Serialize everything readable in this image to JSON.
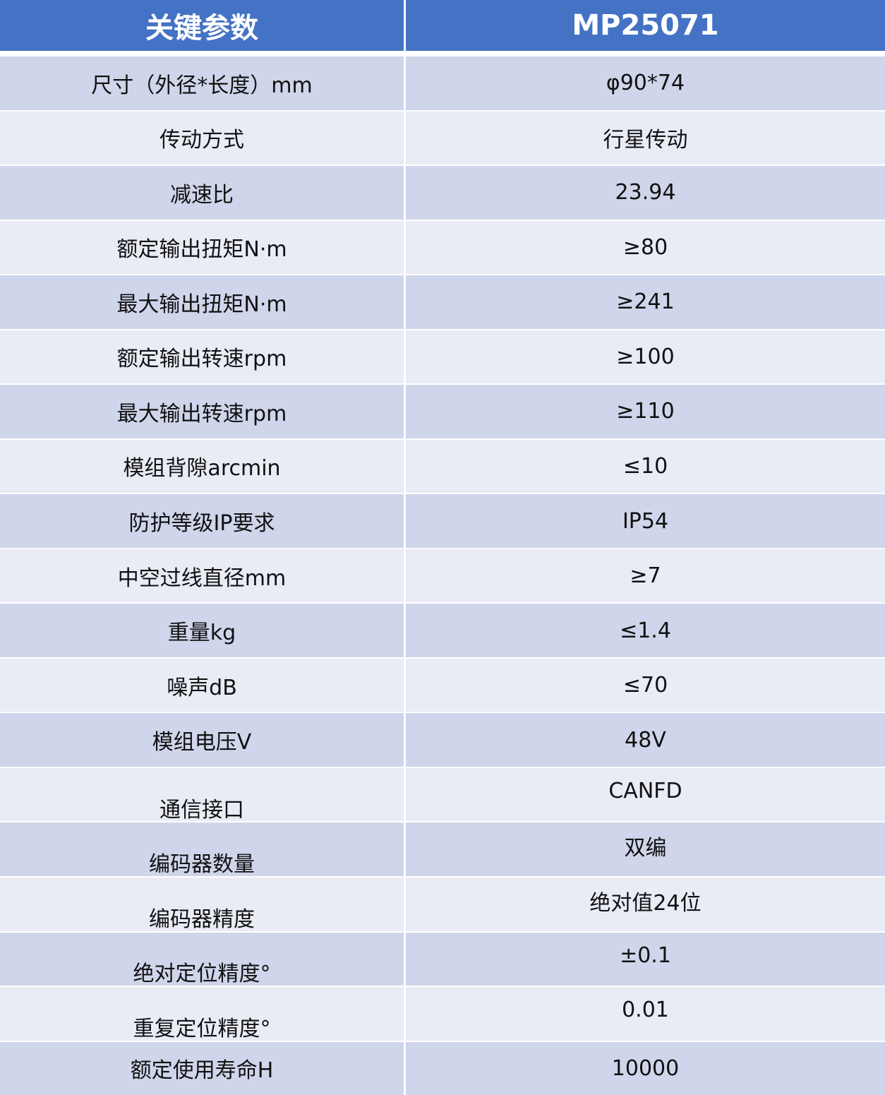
{
  "header": {
    "param": "关键参数",
    "model": "MP25071"
  },
  "colors": {
    "header": "#4472C4",
    "row_odd": "#CFD5EA",
    "row_even": "#E9EBF5"
  },
  "rows": [
    {
      "label": "尺寸（外径*长度）mm",
      "value": "φ90*74"
    },
    {
      "label": "传动方式",
      "value": "行星传动"
    },
    {
      "label": "减速比",
      "value": "23.94"
    },
    {
      "label": "额定输出扭矩N·m",
      "value": "≥80"
    },
    {
      "label": "最大输出扭矩N·m",
      "value": "≥241"
    },
    {
      "label": "额定输出转速rpm",
      "value": "≥100"
    },
    {
      "label": "最大输出转速rpm",
      "value": "≥110"
    },
    {
      "label": "模组背隙arcmin",
      "value": "≤10"
    },
    {
      "label": "防护等级IP要求",
      "value": "IP54"
    },
    {
      "label": "中空过线直径mm",
      "value": "≥7"
    },
    {
      "label": "重量kg",
      "value": "≤1.4"
    },
    {
      "label": "噪声dB",
      "value": "≤70"
    },
    {
      "label": "模组电压V",
      "value": "48V"
    },
    {
      "label": "通信接口",
      "value": "CANFD"
    },
    {
      "label": "编码器数量",
      "value": "双编"
    },
    {
      "label": "编码器精度",
      "value": "绝对值24位"
    },
    {
      "label": "绝对定位精度°",
      "value": "±0.1"
    },
    {
      "label": "重复定位精度°",
      "value": "0.01"
    },
    {
      "label": "额定使用寿命H",
      "value": "10000"
    }
  ]
}
